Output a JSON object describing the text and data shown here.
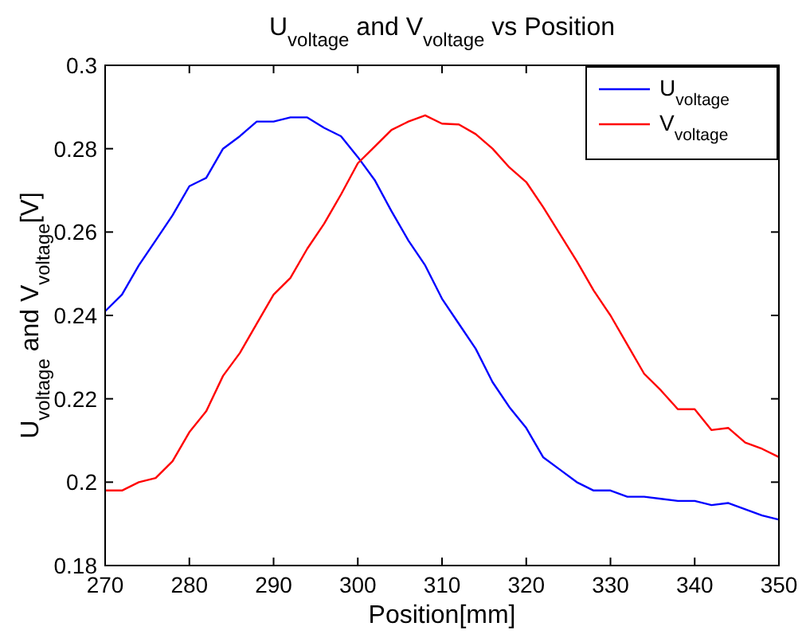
{
  "chart_data": {
    "type": "line",
    "title": "U$_{voltage}$ and V$_{voltage}$ vs Position",
    "xlabel": "Position[mm]",
    "ylabel": "U$_{voltage}$ and V$_{voltage}$[V]",
    "x": [
      270,
      272,
      274,
      276,
      278,
      280,
      282,
      284,
      286,
      288,
      290,
      292,
      294,
      296,
      298,
      300,
      302,
      304,
      306,
      308,
      310,
      312,
      314,
      316,
      318,
      320,
      322,
      324,
      326,
      328,
      330,
      332,
      334,
      336,
      338,
      340,
      342,
      344,
      346,
      348,
      350
    ],
    "series": [
      {
        "name": "U$_{voltage}$",
        "color": "#0000ff",
        "values": [
          0.241,
          0.245,
          0.252,
          0.258,
          0.264,
          0.271,
          0.273,
          0.28,
          0.283,
          0.2865,
          0.2865,
          0.2875,
          0.2875,
          0.285,
          0.283,
          0.278,
          0.2725,
          0.265,
          0.258,
          0.252,
          0.244,
          0.238,
          0.232,
          0.224,
          0.218,
          0.213,
          0.206,
          0.203,
          0.2,
          0.198,
          0.198,
          0.1965,
          0.1965,
          0.196,
          0.1955,
          0.1955,
          0.1945,
          0.195,
          0.1935,
          0.192,
          0.191
        ]
      },
      {
        "name": "V$_{voltage}$",
        "color": "#ff0000",
        "values": [
          0.198,
          0.198,
          0.2,
          0.201,
          0.205,
          0.212,
          0.217,
          0.2255,
          0.231,
          0.238,
          0.245,
          0.249,
          0.256,
          0.262,
          0.269,
          0.2765,
          0.2805,
          0.2845,
          0.2865,
          0.288,
          0.286,
          0.2858,
          0.2835,
          0.28,
          0.2755,
          0.272,
          0.266,
          0.2595,
          0.253,
          0.246,
          0.24,
          0.233,
          0.226,
          0.222,
          0.2175,
          0.2175,
          0.2125,
          0.213,
          0.2095,
          0.208,
          0.206
        ]
      }
    ],
    "xlim": [
      270,
      350
    ],
    "xticks": [
      270,
      280,
      290,
      300,
      310,
      320,
      330,
      340,
      350
    ],
    "ylim": [
      0.18,
      0.3
    ],
    "yticks": [
      0.18,
      0.2,
      0.22,
      0.24,
      0.26,
      0.28,
      0.3
    ],
    "grid": false,
    "legend": "top right",
    "marker": "none",
    "line_style": "solid"
  }
}
